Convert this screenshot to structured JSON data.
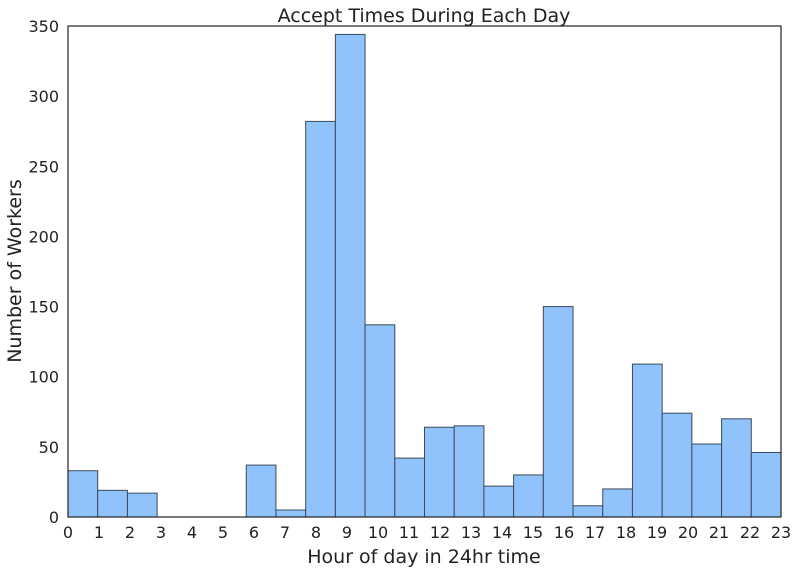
{
  "chart_data": {
    "type": "bar",
    "title": "Accept Times During Each Day",
    "xlabel": "Hour of day in 24hr time",
    "ylabel": "Number of Workers",
    "xlim": [
      0,
      23
    ],
    "ylim": [
      0,
      350
    ],
    "x_ticks": [
      "0",
      "1",
      "2",
      "3",
      "4",
      "5",
      "6",
      "7",
      "8",
      "9",
      "10",
      "11",
      "12",
      "13",
      "14",
      "15",
      "16",
      "17",
      "18",
      "19",
      "20",
      "21",
      "22",
      "23"
    ],
    "y_ticks": [
      "0",
      "50",
      "100",
      "150",
      "200",
      "250",
      "300",
      "350"
    ],
    "bins": [
      {
        "start": 0.0,
        "end": 0.958,
        "value": 33
      },
      {
        "start": 0.958,
        "end": 1.917,
        "value": 19
      },
      {
        "start": 1.917,
        "end": 2.875,
        "value": 17
      },
      {
        "start": 2.875,
        "end": 3.833,
        "value": 0
      },
      {
        "start": 3.833,
        "end": 4.792,
        "value": 0
      },
      {
        "start": 4.792,
        "end": 5.75,
        "value": 0
      },
      {
        "start": 5.75,
        "end": 6.708,
        "value": 37
      },
      {
        "start": 6.708,
        "end": 7.667,
        "value": 5
      },
      {
        "start": 7.667,
        "end": 8.625,
        "value": 282
      },
      {
        "start": 8.625,
        "end": 9.583,
        "value": 344
      },
      {
        "start": 9.583,
        "end": 10.542,
        "value": 137
      },
      {
        "start": 10.542,
        "end": 11.5,
        "value": 42
      },
      {
        "start": 11.5,
        "end": 12.458,
        "value": 64
      },
      {
        "start": 12.458,
        "end": 13.417,
        "value": 65
      },
      {
        "start": 13.417,
        "end": 14.375,
        "value": 22
      },
      {
        "start": 14.375,
        "end": 15.333,
        "value": 30
      },
      {
        "start": 15.333,
        "end": 16.292,
        "value": 150
      },
      {
        "start": 16.292,
        "end": 17.25,
        "value": 8
      },
      {
        "start": 17.25,
        "end": 18.208,
        "value": 20
      },
      {
        "start": 18.208,
        "end": 19.167,
        "value": 109
      },
      {
        "start": 19.167,
        "end": 20.125,
        "value": 74
      },
      {
        "start": 20.125,
        "end": 21.083,
        "value": 52
      },
      {
        "start": 21.083,
        "end": 22.042,
        "value": 70
      },
      {
        "start": 22.042,
        "end": 23.0,
        "value": 46
      }
    ],
    "grid": false,
    "legend": "none",
    "bar_color": "#90c3fc",
    "edge_color": "#3b4a5a"
  }
}
